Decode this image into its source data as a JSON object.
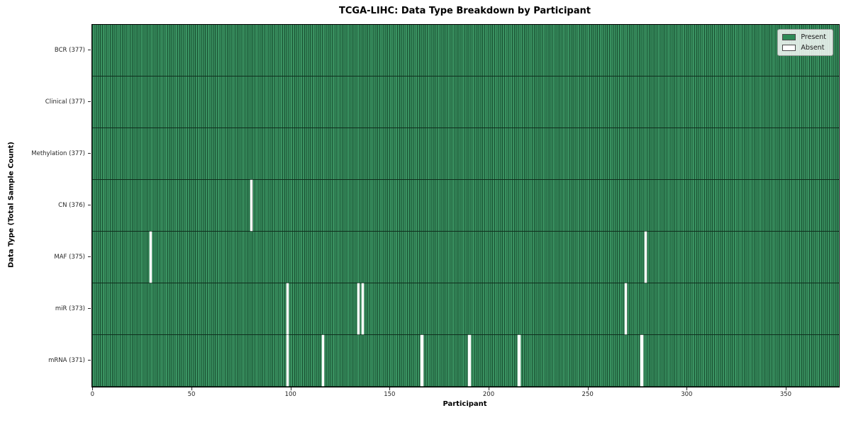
{
  "title": "TCGA-LIHC: Data Type Breakdown by Participant",
  "chart_data": {
    "type": "heatmap",
    "title": "TCGA-LIHC: Data Type Breakdown by Participant",
    "xlabel": "Participant",
    "ylabel": "Data Type (Total Sample Count)",
    "n_participants": 377,
    "x_range": [
      0,
      377
    ],
    "x_ticks": [
      0,
      50,
      100,
      150,
      200,
      250,
      300,
      350
    ],
    "grid": "per-cell vertical gridlines, horizontal row separators",
    "legend": {
      "position": "upper right",
      "items": [
        {
          "label": "Present",
          "color": "#2e8b57"
        },
        {
          "label": "Absent",
          "color": "#ffffff"
        }
      ]
    },
    "colors": {
      "present": "#2e8b57",
      "absent": "#ffffff",
      "gridline": "#0f2e1d"
    },
    "rows": [
      {
        "label": "BCR (377)",
        "data_type": "BCR",
        "total_samples": 377,
        "absent_participants": []
      },
      {
        "label": "Clinical (377)",
        "data_type": "Clinical",
        "total_samples": 377,
        "absent_participants": []
      },
      {
        "label": "Methylation (377)",
        "data_type": "Methylation",
        "total_samples": 377,
        "absent_participants": []
      },
      {
        "label": "CN (376)",
        "data_type": "CN",
        "total_samples": 376,
        "absent_participants": [
          80
        ]
      },
      {
        "label": "MAF (375)",
        "data_type": "MAF",
        "total_samples": 375,
        "absent_participants": [
          29,
          279
        ]
      },
      {
        "label": "miR (373)",
        "data_type": "miR",
        "total_samples": 373,
        "absent_participants": [
          98,
          134,
          136,
          269
        ]
      },
      {
        "label": "mRNA (371)",
        "data_type": "mRNA",
        "total_samples": 371,
        "absent_participants": [
          98,
          116,
          166,
          190,
          215,
          277
        ]
      }
    ]
  }
}
